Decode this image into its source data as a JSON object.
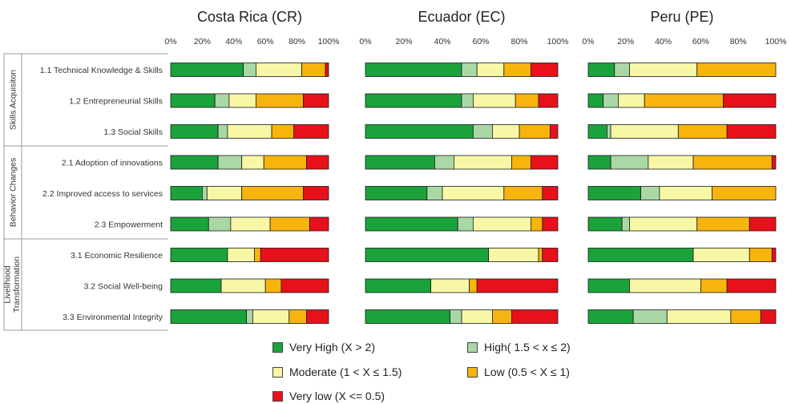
{
  "chart_data": {
    "type": "bar",
    "orientation": "horizontal",
    "stacked": "percent",
    "xlim": [
      0,
      100
    ],
    "tick_labels": [
      "0%",
      "20%",
      "40%",
      "60%",
      "80%",
      "100%"
    ],
    "groups": [
      {
        "label": "Skills Acquisiton",
        "categories": [
          "1.1 Technical Knowledge & Skills",
          "1.2 Entrepreneurial Skills",
          "1.3 Social Skills"
        ]
      },
      {
        "label": "Behavior Changes",
        "categories": [
          "2.1 Adoption of innovations",
          "2.2 Improved access to services",
          "2.3 Empowerment"
        ]
      },
      {
        "label": "Livelihood Transformation",
        "categories": [
          "3.1 Economic Resilience",
          "3.2 Social Well-being",
          "3.3 Environmental Integrity"
        ]
      }
    ],
    "categories": [
      "1.1 Technical Knowledge & Skills",
      "1.2 Entrepreneurial Skills",
      "1.3 Social Skills",
      "2.1 Adoption of innovations",
      "2.2 Improved access to services",
      "2.3 Empowerment",
      "3.1 Economic Resilience",
      "3.2 Social Well-being",
      "3.3 Environmental Integrity"
    ],
    "series": [
      {
        "name": "Very High (X > 2)",
        "color": "#1aa33b"
      },
      {
        "name": "High( 1.5 < x ≤ 2)",
        "color": "#a9d8a6"
      },
      {
        "name": "Moderate (1 < X ≤ 1.5)",
        "color": "#f7f7a6"
      },
      {
        "name": "Low (0.5 < X ≤ 1)",
        "color": "#f7b40c"
      },
      {
        "name": "Very low (X <= 0.5)",
        "color": "#e8101b"
      }
    ],
    "panels": [
      {
        "title": "Costa Rica (CR)",
        "values": [
          [
            46,
            8,
            29,
            15,
            2
          ],
          [
            28,
            9,
            17,
            30,
            16
          ],
          [
            30,
            6,
            28,
            14,
            22
          ],
          [
            30,
            15,
            14,
            27,
            14
          ],
          [
            20,
            3,
            22,
            39,
            16
          ],
          [
            24,
            14,
            25,
            25,
            12
          ],
          [
            36,
            0,
            17,
            4,
            43
          ],
          [
            32,
            0,
            28,
            10,
            30
          ],
          [
            48,
            4,
            23,
            11,
            14
          ]
        ]
      },
      {
        "title": "Ecuador (EC)",
        "values": [
          [
            50,
            8,
            14,
            14,
            14
          ],
          [
            50,
            6,
            22,
            12,
            10
          ],
          [
            56,
            10,
            14,
            16,
            4
          ],
          [
            36,
            10,
            30,
            10,
            14
          ],
          [
            32,
            8,
            32,
            20,
            8
          ],
          [
            48,
            8,
            30,
            6,
            8
          ],
          [
            64,
            0,
            26,
            2,
            8
          ],
          [
            34,
            0,
            20,
            4,
            42
          ],
          [
            44,
            6,
            16,
            10,
            24
          ]
        ]
      },
      {
        "title": "Peru (PE)",
        "values": [
          [
            14,
            8,
            36,
            42,
            0
          ],
          [
            8,
            8,
            14,
            42,
            28
          ],
          [
            10,
            2,
            36,
            26,
            26
          ],
          [
            12,
            20,
            24,
            42,
            2
          ],
          [
            28,
            10,
            28,
            34,
            0
          ],
          [
            18,
            4,
            36,
            28,
            14
          ],
          [
            56,
            0,
            30,
            12,
            2
          ],
          [
            22,
            0,
            38,
            14,
            26
          ],
          [
            24,
            18,
            34,
            16,
            8
          ]
        ]
      }
    ]
  }
}
